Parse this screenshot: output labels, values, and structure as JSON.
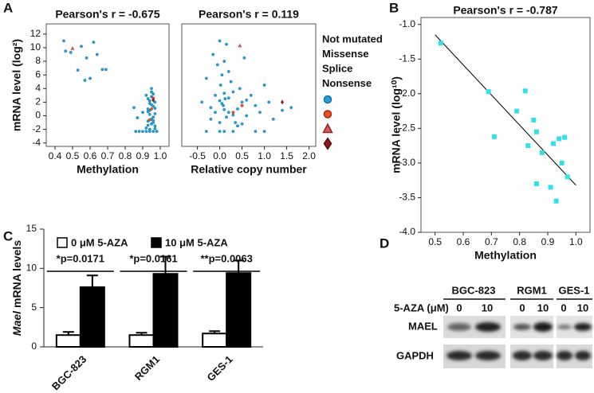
{
  "panels": [
    "A",
    "B",
    "C",
    "D"
  ],
  "chart_data": [
    {
      "type": "scatter",
      "title": "Pearson's r = -0.675",
      "x_label": "Methylation",
      "y_label": "mRNA level (log²)",
      "xlim": [
        0.35,
        1.05
      ],
      "xticks": [
        0.4,
        0.5,
        0.6,
        0.7,
        0.8,
        0.9,
        {
          "value": 1,
          "label": "1.0"
        }
      ],
      "ylim": [
        -4.5,
        13.5
      ],
      "yticks": [
        -4,
        -2,
        0,
        2,
        4,
        6,
        8,
        10,
        12
      ],
      "series": [
        {
          "name": "Not mutated",
          "color": "#1fa0d8",
          "edgecolor": "#1a6fa0",
          "marker": "circle",
          "x": [
            0.45,
            0.46,
            0.49,
            0.55,
            0.58,
            0.62,
            0.64,
            0.67,
            0.69,
            0.53,
            0.57,
            0.6,
            0.85,
            0.87,
            0.9,
            0.92,
            0.93,
            0.94,
            0.95,
            0.96,
            0.97,
            0.93,
            0.94,
            0.95,
            0.96,
            0.97,
            0.92,
            0.94,
            0.95,
            0.96,
            0.93,
            0.95,
            0.97,
            0.94,
            0.96,
            0.95,
            0.93,
            0.97,
            0.94,
            0.96,
            0.86,
            0.88,
            0.9,
            0.92,
            0.94,
            0.96,
            0.98,
            0.95,
            0.97,
            0.93
          ],
          "y": [
            11.0,
            9.5,
            9.3,
            10.2,
            8.5,
            10.8,
            9.0,
            6.8,
            6.8,
            6.7,
            5.2,
            5.5,
            1.2,
            -0.3,
            0.5,
            3.0,
            2.5,
            1.8,
            4.0,
            3.2,
            2.0,
            1.0,
            0.2,
            -0.5,
            -1.0,
            -1.5,
            -1.8,
            0.8,
            2.8,
            1.4,
            -0.8,
            -1.2,
            0.3,
            -2.0,
            -0.2,
            1.6,
            0.6,
            -1.9,
            2.2,
            -0.7,
            -2.3,
            -2.3,
            -2.3,
            -2.3,
            -2.3,
            -2.3,
            -2.3,
            3.5,
            1.1,
            -1.4
          ]
        },
        {
          "name": "Missense",
          "color": "#e8541a",
          "edgecolor": "#b0201a",
          "marker": "circle",
          "x": [
            0.95,
            0.96,
            0.94
          ],
          "y": [
            1.0,
            2.6,
            -0.6
          ]
        },
        {
          "name": "Splice",
          "color": "#d0606a",
          "edgecolor": "#a01a1a",
          "marker": "triangle",
          "x": [
            0.5
          ],
          "y": [
            9.9
          ]
        },
        {
          "name": "Nonsense",
          "color": "#8b1a1a",
          "edgecolor": "#5a0a0a",
          "marker": "diamond",
          "x": [
            0.96
          ],
          "y": [
            2.3
          ]
        }
      ]
    },
    {
      "type": "scatter",
      "title": "Pearson's r = 0.119",
      "x_label": "Relative copy number",
      "xlim": [
        -0.85,
        2.15
      ],
      "xticks": [
        -0.5,
        {
          "value": 0,
          "label": "0.0"
        },
        0.5,
        {
          "value": 1,
          "label": "1.0"
        },
        1.5,
        {
          "value": 2,
          "label": "2.0"
        }
      ],
      "ylim": [
        -4.5,
        13.5
      ],
      "series": [
        {
          "color": "#1fa0d8",
          "edgecolor": "#1a6fa0",
          "marker": "circle",
          "x": [
            -0.4,
            -0.3,
            -0.2,
            -0.15,
            -0.1,
            -0.05,
            0.0,
            0.02,
            0.05,
            0.08,
            0.1,
            0.12,
            0.15,
            0.2,
            0.25,
            0.3,
            0.35,
            0.4,
            0.45,
            0.5,
            0.55,
            0.6,
            0.7,
            0.8,
            0.9,
            1.0,
            1.1,
            1.2,
            1.4,
            1.6,
            -0.1,
            0.0,
            0.05,
            0.1,
            0.15,
            0.2,
            0.3,
            0.4,
            -0.2,
            0.0,
            0.1,
            0.2,
            0.5,
            0.6,
            -0.3,
            0.0,
            0.1,
            0.3,
            0.8,
            1.0
          ],
          "y": [
            2.0,
            5.5,
            -0.5,
            9.0,
            3.0,
            7.5,
            11.0,
            4.5,
            6.0,
            1.5,
            8.0,
            2.5,
            10.5,
            0.5,
            5.0,
            3.5,
            -1.0,
            1.0,
            4.0,
            2.0,
            8.5,
            0.0,
            3.0,
            1.5,
            0.5,
            4.5,
            2.0,
            -0.5,
            0.8,
            1.2,
            0.5,
            -1.0,
            1.8,
            3.3,
            -0.2,
            2.6,
            0.1,
            -1.5,
            1.2,
            2.2,
            0.9,
            6.5,
            -1.2,
            2.3,
            -2.3,
            -2.3,
            -2.3,
            -2.3,
            -2.3,
            -2.3
          ]
        },
        {
          "color": "#e8541a",
          "edgecolor": "#b0201a",
          "marker": "circle",
          "x": [
            0.3,
            0.5
          ],
          "y": [
            0.5,
            1.5
          ]
        },
        {
          "color": "#d0606a",
          "edgecolor": "#a01a1a",
          "marker": "triangle",
          "x": [
            0.45
          ],
          "y": [
            10.3
          ]
        },
        {
          "color": "#8b1a1a",
          "edgecolor": "#5a0a0a",
          "marker": "diamond",
          "x": [
            1.4
          ],
          "y": [
            2.0
          ]
        }
      ]
    },
    {
      "type": "scatter",
      "title": "Pearson's r = -0.787",
      "x_label": "Methylation",
      "y_label": "mRNA level (log¹⁰)",
      "xlim": [
        0.45,
        1.05
      ],
      "xticks": [
        0.5,
        0.6,
        0.7,
        0.8,
        0.9,
        {
          "value": 1,
          "label": "1.0"
        }
      ],
      "ylim": [
        -4,
        -0.9
      ],
      "yticks": [
        {
          "value": -4,
          "label": "-4.0"
        },
        -3.5,
        {
          "value": -3,
          "label": "-3.0"
        },
        -2.5,
        {
          "value": -2,
          "label": "-2.0"
        },
        -1.5,
        {
          "value": -1,
          "label": "-1.0"
        }
      ],
      "series": [
        {
          "color": "#33e0e8",
          "edgecolor": "#33e0e8",
          "marker": "square",
          "x": [
            0.52,
            0.69,
            0.71,
            0.79,
            0.82,
            0.83,
            0.85,
            0.86,
            0.86,
            0.88,
            0.91,
            0.92,
            0.93,
            0.94,
            0.95,
            0.96,
            0.97
          ],
          "y": [
            -1.27,
            -1.97,
            -2.62,
            -2.25,
            -1.96,
            -2.75,
            -2.38,
            -2.55,
            -3.3,
            -2.85,
            -3.35,
            -2.72,
            -3.55,
            -2.65,
            -3.0,
            -2.63,
            -3.2
          ]
        }
      ],
      "trendline": {
        "x": [
          0.5,
          1.0
        ],
        "y": [
          -1.15,
          -3.32
        ]
      }
    },
    {
      "type": "bar",
      "y_label_italic": "Mael",
      "y_label": "mRNA levels",
      "categories": [
        "BGC-823",
        "RGM1",
        "GES-1"
      ],
      "ylim": [
        0,
        15
      ],
      "yticks": [
        0,
        5,
        10,
        15
      ],
      "series": [
        {
          "name": "0 μM 5-AZA",
          "color": "#ffffff",
          "values": [
            1.5,
            1.5,
            1.7
          ],
          "errors": [
            0.4,
            0.3,
            0.3
          ]
        },
        {
          "name": "10 μM 5-AZA",
          "color": "#000000",
          "values": [
            7.6,
            9.3,
            9.4
          ],
          "errors": [
            1.5,
            2.2,
            1.6
          ]
        }
      ],
      "annotations": [
        "*p=0.0171",
        "*p=0.0161",
        "**p=0.0063"
      ]
    }
  ],
  "blot": {
    "cell_lines": [
      "BGC-823",
      "RGM1",
      "GES-1"
    ],
    "treatment_label": "5-AZA (μM)",
    "doses": [
      "0",
      "10"
    ],
    "proteins": [
      "MAEL",
      "GAPDH"
    ]
  }
}
